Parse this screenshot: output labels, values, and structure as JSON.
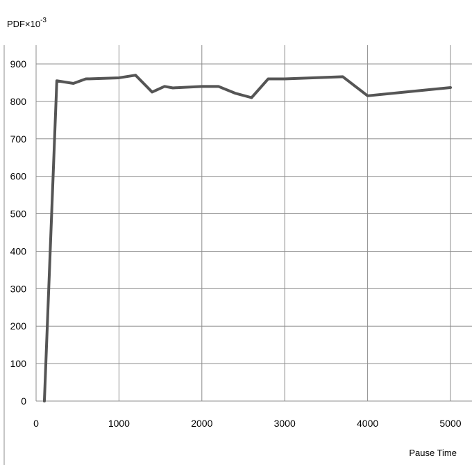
{
  "chart_data": {
    "type": "line",
    "ylabel_main": "PDF×10",
    "ylabel_exponent": "-3",
    "xlabel": "Pause Time",
    "xlim": [
      0,
      5300
    ],
    "ylim": [
      0,
      900
    ],
    "x_ticks": [
      0,
      1000,
      2000,
      3000,
      4000,
      5000
    ],
    "y_ticks": [
      0,
      100,
      200,
      300,
      400,
      500,
      600,
      700,
      800,
      900
    ],
    "grid": true,
    "series": [
      {
        "color": "#555555",
        "x": [
          100,
          250,
          450,
          600,
          1000,
          1200,
          1400,
          1550,
          1650,
          2000,
          2200,
          2400,
          2600,
          2800,
          3000,
          3700,
          4000,
          4500,
          5000
        ],
        "y": [
          0,
          855,
          848,
          860,
          863,
          870,
          825,
          840,
          836,
          840,
          840,
          822,
          810,
          860,
          860,
          866,
          815,
          826,
          837
        ]
      }
    ]
  }
}
